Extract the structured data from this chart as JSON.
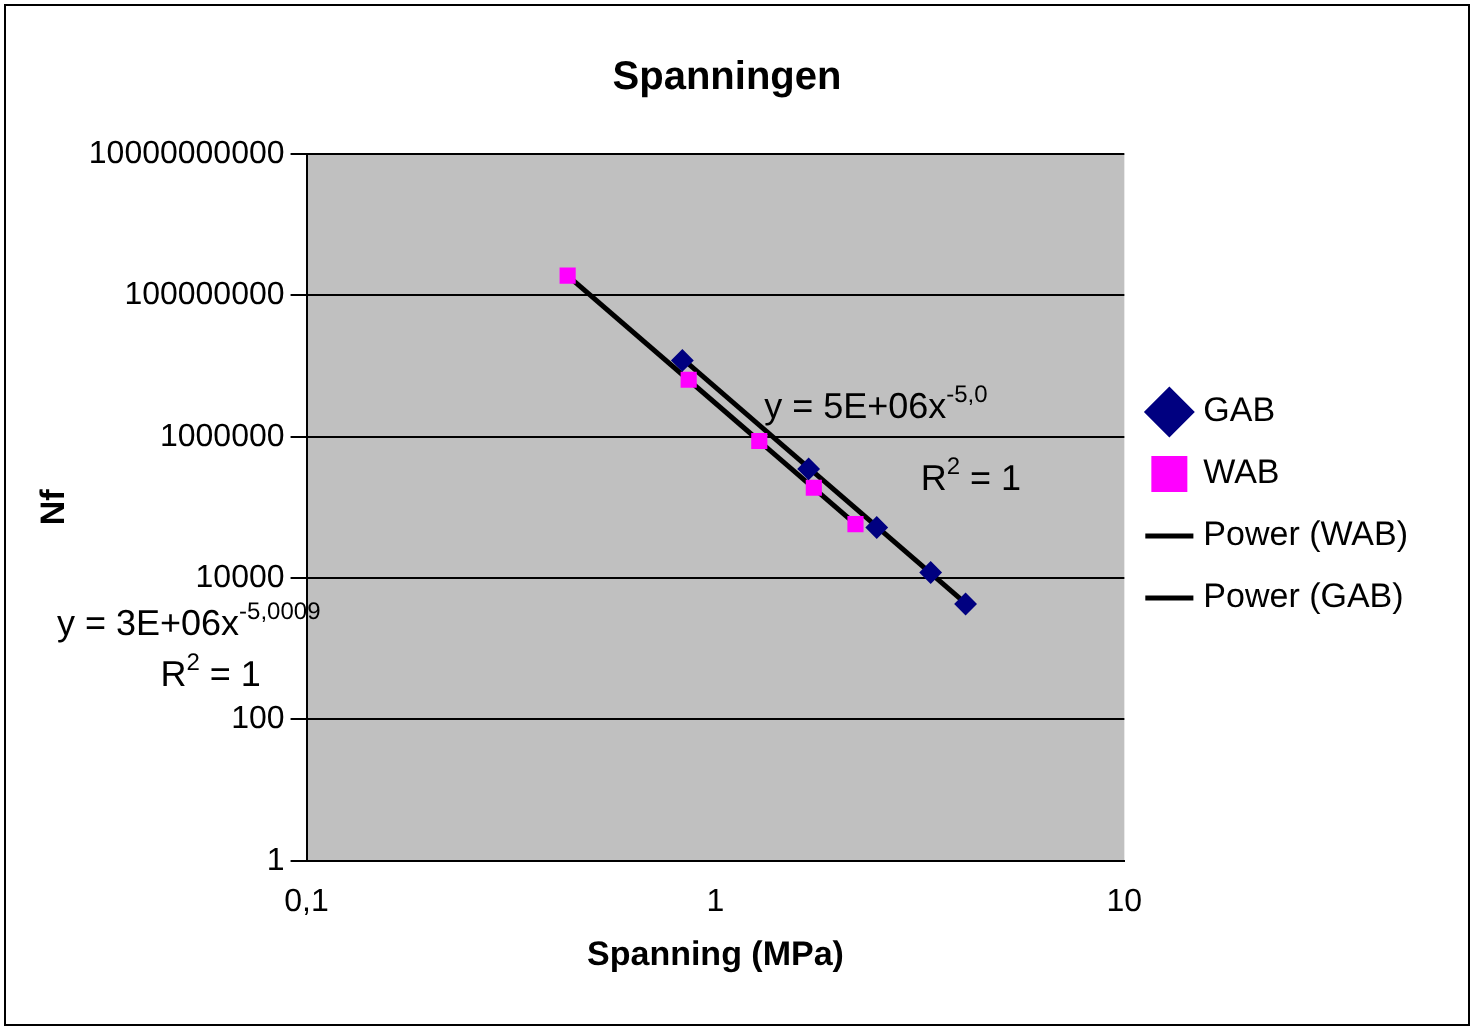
{
  "chart_data": {
    "type": "scatter",
    "title": "Spanningen",
    "xlabel": "Spanning (MPa)",
    "ylabel": "Nf",
    "log": "xy",
    "xlim": [
      0.1,
      10
    ],
    "xticks": [
      {
        "value": 0.1,
        "label": "0,1"
      },
      1,
      10
    ],
    "ylim": [
      1,
      10000000000
    ],
    "yticks": [
      1,
      100,
      10000,
      1000000,
      100000000,
      10000000000
    ],
    "grid": "y",
    "legend": "right",
    "series": [
      {
        "name": "GAB",
        "marker": "diamond",
        "color": "#000080",
        "x": [
          0.83,
          1.69,
          2.48,
          3.36,
          4.09
        ],
        "values": [
          12000000,
          350000,
          52000,
          12000,
          4300
        ]
      },
      {
        "name": "WAB",
        "marker": "square",
        "color": "#ff00ff",
        "x": [
          0.435,
          0.86,
          1.28,
          1.74,
          2.2
        ],
        "values": [
          190000000,
          6400000,
          870000,
          190000,
          58000
        ]
      },
      {
        "name": "Power (WAB)",
        "type": "line",
        "marker": "none",
        "color": "#000000",
        "x": [
          0.435,
          2.2
        ],
        "values": [
          190000000,
          58000
        ]
      },
      {
        "name": "Power (GAB)",
        "type": "line",
        "marker": "none",
        "color": "#000000",
        "x": [
          0.83,
          4.09
        ],
        "values": [
          12700000,
          4400
        ]
      }
    ],
    "annotations": [
      "y = 5E+06x$^{-5,0}$",
      "R$^{2}$ = 1",
      "y = 3E+06x$^{-5,0009}$",
      "R$^{2}$ = 1"
    ]
  }
}
